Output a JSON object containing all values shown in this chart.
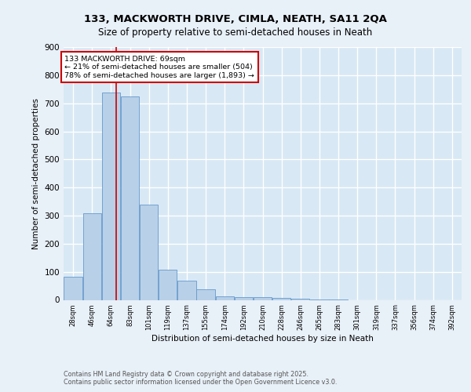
{
  "title_line1": "133, MACKWORTH DRIVE, CIMLA, NEATH, SA11 2QA",
  "title_line2": "Size of property relative to semi-detached houses in Neath",
  "xlabel": "Distribution of semi-detached houses by size in Neath",
  "ylabel": "Number of semi-detached properties",
  "categories": [
    "28sqm",
    "46sqm",
    "64sqm",
    "83sqm",
    "101sqm",
    "119sqm",
    "137sqm",
    "155sqm",
    "174sqm",
    "192sqm",
    "210sqm",
    "228sqm",
    "246sqm",
    "265sqm",
    "283sqm",
    "301sqm",
    "319sqm",
    "337sqm",
    "356sqm",
    "374sqm",
    "392sqm"
  ],
  "values": [
    83,
    307,
    738,
    725,
    340,
    107,
    68,
    38,
    13,
    11,
    9,
    6,
    3,
    1,
    1,
    0,
    0,
    0,
    0,
    0,
    0
  ],
  "bar_color": "#b8d0e8",
  "bar_edge_color": "#6699cc",
  "property_size": 69,
  "bin_edges": [
    19,
    37,
    55,
    73,
    91,
    109,
    127,
    145,
    163,
    181,
    199,
    217,
    235,
    253,
    271,
    289,
    307,
    325,
    343,
    361,
    379,
    397
  ],
  "vline_x": 69,
  "vline_color": "#cc0000",
  "annotation_text": "133 MACKWORTH DRIVE: 69sqm\n← 21% of semi-detached houses are smaller (504)\n78% of semi-detached houses are larger (1,893) →",
  "annotation_box_color": "#ffffff",
  "annotation_box_edge_color": "#cc0000",
  "footer_text": "Contains HM Land Registry data © Crown copyright and database right 2025.\nContains public sector information licensed under the Open Government Licence v3.0.",
  "background_color": "#e8f0f8",
  "plot_background_color": "#d8e8f5",
  "grid_color": "#ffffff",
  "ylim": [
    0,
    900
  ],
  "yticks": [
    0,
    100,
    200,
    300,
    400,
    500,
    600,
    700,
    800,
    900
  ]
}
